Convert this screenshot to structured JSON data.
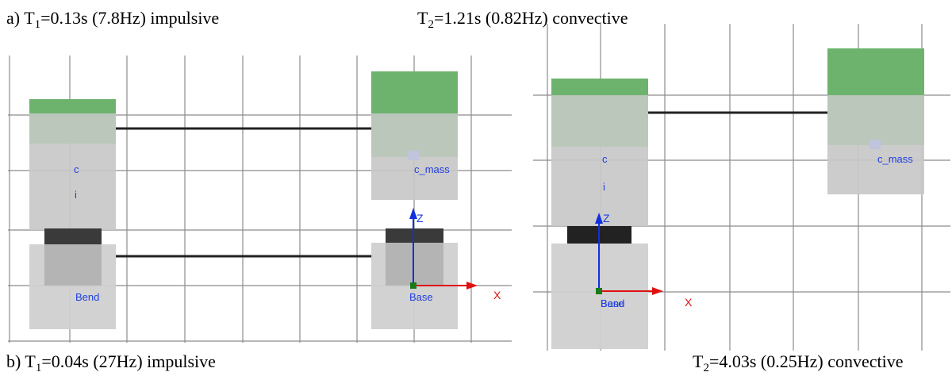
{
  "captions": [
    {
      "prefix": "a) T",
      "subscript": "1",
      "suffix": "=0.13s (7.8Hz) impulsive"
    },
    {
      "prefix": "T",
      "subscript": "2",
      "suffix": "=1.21s (0.82Hz) convective"
    },
    {
      "prefix": "b) T",
      "subscript": "1",
      "suffix": "=0.04s (27Hz) impulsive"
    },
    {
      "prefix": "T",
      "subscript": "2",
      "suffix": "=4.03s (0.25Hz) convective"
    }
  ],
  "panels": [
    {
      "labels": {
        "c": "c",
        "i": "i",
        "mass": "c_mass",
        "bend": "Bend",
        "base": "Base",
        "z": "Z",
        "x": "X"
      }
    },
    {
      "labels": {
        "c": "c",
        "i": "i",
        "mass": "c_mass",
        "bend": "Bend",
        "base": "Base",
        "z": "Z",
        "x": "X"
      }
    }
  ]
}
